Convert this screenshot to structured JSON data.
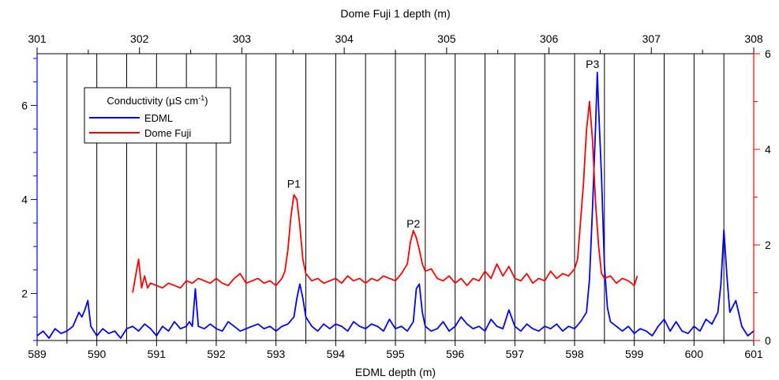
{
  "chart_data": {
    "type": "line",
    "title": "",
    "xlabel_bottom": "EDML depth (m)",
    "xlabel_top": "Dome Fuji 1 depth (m)",
    "ylabel_left": "",
    "ylabel_right": "",
    "xlim_bottom": [
      589,
      601
    ],
    "xlim_top": [
      301,
      308
    ],
    "ylim_left": [
      1,
      7.1
    ],
    "ylim_right": [
      0,
      6
    ],
    "bottom_ticks": [
      "589",
      "590",
      "591",
      "592",
      "593",
      "594",
      "595",
      "596",
      "597",
      "598",
      "599",
      "600",
      "601"
    ],
    "top_ticks": [
      "301",
      "302",
      "303",
      "304",
      "305",
      "306",
      "307",
      "308"
    ],
    "left_ticks": [
      "2",
      "4",
      "6"
    ],
    "right_ticks": [
      "0",
      "2",
      "4",
      "6"
    ],
    "vertical_lines_edml_depth": [
      589.5,
      590.0,
      590.5,
      591.0,
      591.5,
      592.0,
      592.5,
      593.0,
      593.5,
      594.0,
      594.5,
      595.0,
      595.5,
      596.0,
      596.5,
      597.0,
      597.5,
      598.0,
      598.5,
      599.0,
      599.5,
      600.0,
      600.5
    ],
    "legend": {
      "title": "Conductivity (µS cm",
      "title_sup": "-1",
      "title_end": ")",
      "entries": [
        "EDML",
        "Dome Fuji"
      ],
      "placement": "upper-left"
    },
    "annotations": [
      {
        "text": "P1",
        "x": 593.3,
        "y": 4.25
      },
      {
        "text": "P2",
        "x": 595.3,
        "y": 3.4
      },
      {
        "text": "P3",
        "x": 598.3,
        "y": 6.8
      }
    ],
    "series": [
      {
        "name": "EDML",
        "axis": "left",
        "color": "#0000ff",
        "x": [
          589.0,
          589.1,
          589.2,
          589.3,
          589.4,
          589.5,
          589.6,
          589.7,
          589.75,
          589.8,
          589.85,
          589.9,
          590.0,
          590.1,
          590.2,
          590.3,
          590.4,
          590.5,
          590.6,
          590.7,
          590.8,
          590.9,
          591.0,
          591.1,
          591.2,
          591.3,
          591.4,
          591.5,
          591.55,
          591.6,
          591.65,
          591.7,
          591.8,
          591.9,
          592.0,
          592.1,
          592.2,
          592.3,
          592.4,
          592.5,
          592.6,
          592.7,
          592.8,
          592.9,
          593.0,
          593.1,
          593.2,
          593.3,
          593.35,
          593.4,
          593.45,
          593.5,
          593.6,
          593.7,
          593.8,
          593.9,
          594.0,
          594.1,
          594.2,
          594.3,
          594.4,
          594.5,
          594.6,
          594.7,
          594.8,
          594.9,
          595.0,
          595.1,
          595.2,
          595.3,
          595.35,
          595.4,
          595.45,
          595.5,
          595.6,
          595.7,
          595.8,
          595.9,
          596.0,
          596.1,
          596.2,
          596.3,
          596.4,
          596.5,
          596.6,
          596.7,
          596.8,
          596.9,
          597.0,
          597.1,
          597.2,
          597.3,
          597.4,
          597.5,
          597.6,
          597.7,
          597.8,
          597.9,
          598.0,
          598.1,
          598.2,
          598.25,
          598.3,
          598.35,
          598.38,
          598.4,
          598.45,
          598.5,
          598.55,
          598.6,
          598.7,
          598.8,
          598.9,
          599.0,
          599.1,
          599.2,
          599.3,
          599.4,
          599.5,
          599.6,
          599.7,
          599.8,
          599.9,
          600.0,
          600.1,
          600.2,
          600.3,
          600.4,
          600.45,
          600.5,
          600.55,
          600.6,
          600.7,
          600.8,
          600.9,
          601.0
        ],
        "values": [
          1.1,
          1.2,
          1.05,
          1.25,
          1.15,
          1.2,
          1.3,
          1.6,
          1.5,
          1.65,
          1.85,
          1.3,
          1.1,
          1.25,
          1.15,
          1.2,
          1.05,
          1.25,
          1.3,
          1.2,
          1.35,
          1.25,
          1.1,
          1.3,
          1.2,
          1.4,
          1.25,
          1.3,
          1.4,
          1.3,
          2.1,
          1.3,
          1.25,
          1.35,
          1.25,
          1.2,
          1.4,
          1.3,
          1.2,
          1.25,
          1.3,
          1.35,
          1.25,
          1.3,
          1.2,
          1.3,
          1.35,
          1.5,
          1.9,
          2.2,
          1.9,
          1.5,
          1.3,
          1.2,
          1.35,
          1.25,
          1.35,
          1.3,
          1.2,
          1.4,
          1.3,
          1.25,
          1.35,
          1.3,
          1.2,
          1.45,
          1.25,
          1.3,
          1.2,
          1.4,
          2.1,
          2.2,
          1.6,
          1.3,
          1.2,
          1.25,
          1.4,
          1.2,
          1.3,
          1.5,
          1.35,
          1.25,
          1.3,
          1.2,
          1.45,
          1.3,
          1.25,
          1.65,
          1.3,
          1.2,
          1.35,
          1.25,
          1.2,
          1.3,
          1.25,
          1.35,
          1.2,
          1.3,
          1.25,
          1.4,
          1.6,
          2.3,
          3.8,
          5.5,
          6.7,
          6.0,
          4.5,
          2.6,
          1.7,
          1.4,
          1.3,
          1.2,
          1.3,
          1.15,
          1.25,
          1.2,
          1.1,
          1.3,
          1.45,
          1.2,
          1.4,
          1.2,
          1.15,
          1.3,
          1.2,
          1.45,
          1.35,
          1.6,
          2.2,
          3.35,
          2.4,
          1.6,
          1.85,
          1.3,
          1.1,
          1.2
        ]
      },
      {
        "name": "Dome Fuji",
        "axis": "right",
        "color": "#ff0000",
        "x": [
          590.6,
          590.65,
          590.7,
          590.75,
          590.8,
          590.85,
          590.9,
          591.0,
          591.1,
          591.2,
          591.3,
          591.4,
          591.5,
          591.6,
          591.7,
          591.8,
          591.9,
          592.0,
          592.1,
          592.2,
          592.3,
          592.4,
          592.5,
          592.6,
          592.7,
          592.8,
          592.9,
          593.0,
          593.1,
          593.15,
          593.2,
          593.25,
          593.3,
          593.35,
          593.4,
          593.45,
          593.5,
          593.6,
          593.7,
          593.8,
          593.9,
          594.0,
          594.1,
          594.2,
          594.3,
          594.4,
          594.5,
          594.6,
          594.7,
          594.8,
          594.9,
          595.0,
          595.1,
          595.2,
          595.25,
          595.3,
          595.35,
          595.4,
          595.45,
          595.5,
          595.6,
          595.7,
          595.8,
          595.9,
          596.0,
          596.1,
          596.2,
          596.3,
          596.4,
          596.5,
          596.6,
          596.7,
          596.8,
          596.9,
          597.0,
          597.1,
          597.2,
          597.3,
          597.4,
          597.5,
          597.6,
          597.7,
          597.8,
          597.9,
          598.0,
          598.05,
          598.1,
          598.15,
          598.2,
          598.25,
          598.3,
          598.35,
          598.4,
          598.45,
          598.5,
          598.6,
          598.7,
          598.8,
          598.9,
          599.0,
          599.05
        ],
        "values": [
          1.0,
          1.35,
          1.7,
          1.1,
          1.35,
          1.1,
          1.2,
          1.15,
          1.1,
          1.2,
          1.15,
          1.1,
          1.25,
          1.2,
          1.3,
          1.25,
          1.2,
          1.3,
          1.2,
          1.15,
          1.3,
          1.4,
          1.2,
          1.25,
          1.3,
          1.2,
          1.25,
          1.15,
          1.3,
          1.45,
          1.9,
          2.6,
          3.05,
          2.95,
          2.4,
          1.7,
          1.4,
          1.25,
          1.3,
          1.2,
          1.25,
          1.3,
          1.2,
          1.35,
          1.25,
          1.3,
          1.2,
          1.3,
          1.25,
          1.35,
          1.3,
          1.25,
          1.4,
          1.6,
          2.05,
          2.3,
          2.15,
          1.9,
          1.6,
          1.45,
          1.5,
          1.3,
          1.25,
          1.35,
          1.2,
          1.3,
          1.15,
          1.3,
          1.25,
          1.45,
          1.3,
          1.6,
          1.35,
          1.55,
          1.3,
          1.25,
          1.4,
          1.2,
          1.3,
          1.25,
          1.45,
          1.3,
          1.4,
          1.35,
          1.5,
          1.7,
          2.5,
          3.3,
          4.4,
          5.0,
          4.2,
          2.9,
          2.0,
          1.4,
          1.3,
          1.35,
          1.2,
          1.3,
          1.25,
          1.15,
          1.35
        ]
      }
    ]
  }
}
